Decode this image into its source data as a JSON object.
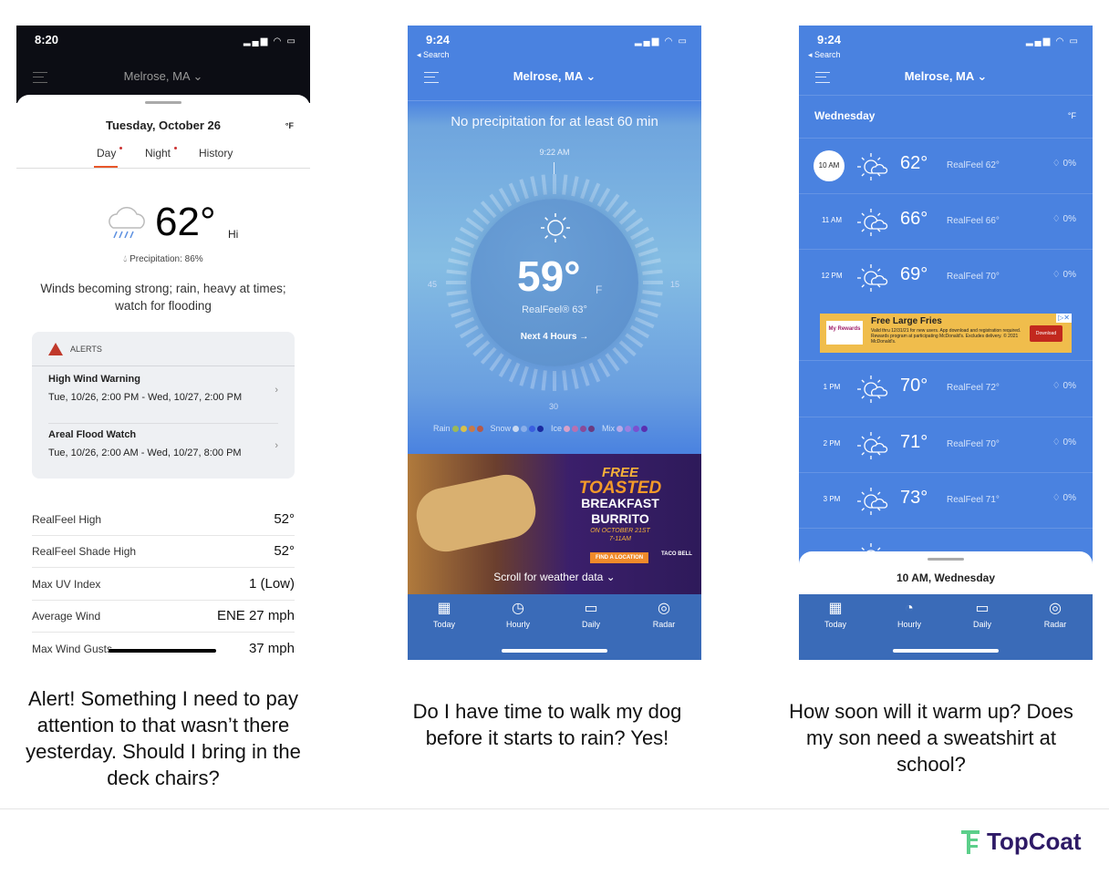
{
  "left_phone": {
    "time": "8:20",
    "location": "Melrose, MA",
    "date": "Tuesday, October 26",
    "unit": "°F",
    "tabs": [
      "Day",
      "Night",
      "History"
    ],
    "temp": "62°",
    "temp_label": "Hi",
    "precipitation": "Precipitation: 86%",
    "description": "Winds becoming strong; rain, heavy at times; watch for flooding",
    "alerts": {
      "title": "ALERTS",
      "items": [
        {
          "name": "High Wind Warning",
          "time": "Tue, 10/26, 2:00 PM - Wed, 10/27, 2:00 PM"
        },
        {
          "name": "Areal Flood Watch",
          "time": "Tue, 10/26, 2:00 AM - Wed, 10/27, 8:00 PM"
        }
      ]
    },
    "details": [
      {
        "label": "RealFeel High",
        "value": "52°"
      },
      {
        "label": "RealFeel Shade High",
        "value": "52°"
      },
      {
        "label": "Max UV Index",
        "value": "1 (Low)"
      },
      {
        "label": "Average Wind",
        "value": "ENE 27 mph"
      },
      {
        "label": "Max Wind Gusts",
        "value": "37 mph"
      }
    ]
  },
  "middle_phone": {
    "time": "9:24",
    "back": "◂ Search",
    "location": "Melrose, MA",
    "minutecast": "No precipitation for at least 60 min",
    "dial_time": "9:22 AM",
    "dial_labels": {
      "left": "45",
      "right": "15",
      "bottom": "30"
    },
    "temp": "59°",
    "unit": "F",
    "realfeel": "RealFeel® 63°",
    "next": "Next 4 Hours →",
    "legend": [
      {
        "label": "Rain",
        "colors": [
          "#9ab85a",
          "#d8c04a",
          "#c77a4a",
          "#b55a4a"
        ]
      },
      {
        "label": "Snow",
        "colors": [
          "#c8d8f0",
          "#8aaee8",
          "#3a5ee0",
          "#1a2aa0"
        ]
      },
      {
        "label": "Ice",
        "colors": [
          "#d8a0c8",
          "#b870b0",
          "#8a4a98",
          "#6a3a80"
        ]
      },
      {
        "label": "Mix",
        "colors": [
          "#b8a8e8",
          "#9a80e0",
          "#7a50d0",
          "#5a30b0"
        ]
      }
    ],
    "ad": {
      "line1": "FREE",
      "line2": "TOASTED",
      "line3": "BREAKFAST",
      "line4": "BURRITO",
      "date": "ON OCTOBER 21ST",
      "hours": "7-11AM",
      "cta": "FIND A LOCATION",
      "brand": "TACO BELL"
    },
    "scroll_hint": "Scroll for weather data ⌄",
    "tabs": [
      "Today",
      "Hourly",
      "Daily",
      "Radar"
    ]
  },
  "right_phone": {
    "time": "9:24",
    "back": "◂ Search",
    "location": "Melrose, MA",
    "day": "Wednesday",
    "unit": "°F",
    "hours": [
      {
        "time": "10 AM",
        "temp": "62°",
        "realfeel": "RealFeel 62°",
        "precip": "0%"
      },
      {
        "time": "11 AM",
        "temp": "66°",
        "realfeel": "RealFeel 66°",
        "precip": "0%"
      },
      {
        "time": "12 PM",
        "temp": "69°",
        "realfeel": "RealFeel 70°",
        "precip": "0%"
      },
      {
        "time": "1 PM",
        "temp": "70°",
        "realfeel": "RealFeel 72°",
        "precip": "0%"
      },
      {
        "time": "2 PM",
        "temp": "71°",
        "realfeel": "RealFeel 70°",
        "precip": "0%"
      },
      {
        "time": "3 PM",
        "temp": "73°",
        "realfeel": "RealFeel 71°",
        "precip": "0%"
      }
    ],
    "ad": {
      "title": "Free Large Fries",
      "body": "Valid thru 12/31/21 for new users. App download and registration required. Rewards program at participating McDonald's. Excludes delivery. © 2021 McDonald's.",
      "logo": "My Rewards",
      "cta": "Download"
    },
    "sheet_title": "10 AM,  Wednesday",
    "tabs": [
      "Today",
      "Hourly",
      "Daily",
      "Radar"
    ]
  },
  "captions": [
    "Alert! Something I need to pay attention to that wasn’t there yesterday.  Should I bring in the deck chairs?",
    "Do I have time to walk my dog before it starts to rain? Yes!",
    "How soon will it warm up? Does my son need a sweatshirt at school?"
  ],
  "logo": "TopCoat",
  "colors": {
    "accent_orange": "#e8572a",
    "alert_red": "#c0392b",
    "app_blue": "#4a82e0",
    "brand_purple": "#2e1a66",
    "brand_green": "#5ccf8a"
  }
}
